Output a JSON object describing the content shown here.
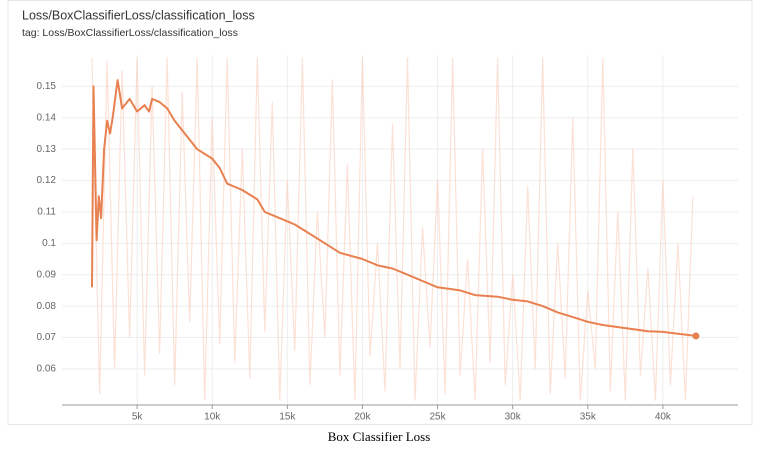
{
  "chart_data": {
    "type": "line",
    "title": "Loss/BoxClassifierLoss/classification_loss",
    "subtitle": "tag: Loss/BoxClassifierLoss/classification_loss",
    "caption": "Box Classifier Loss",
    "xlim": [
      0,
      45000
    ],
    "ylim": [
      0.0485,
      0.16
    ],
    "xticks": [
      {
        "value": 5000,
        "label": "5k"
      },
      {
        "value": 10000,
        "label": "10k"
      },
      {
        "value": 15000,
        "label": "15k"
      },
      {
        "value": 20000,
        "label": "20k"
      },
      {
        "value": 25000,
        "label": "25k"
      },
      {
        "value": 30000,
        "label": "30k"
      },
      {
        "value": 35000,
        "label": "35k"
      },
      {
        "value": 40000,
        "label": "40k"
      }
    ],
    "yticks": [
      0.06,
      0.07,
      0.08,
      0.09,
      0.1,
      0.11,
      0.12,
      0.13,
      0.14,
      0.15
    ],
    "grid": true,
    "series": [
      {
        "color": "#f9c9b4",
        "opacity": 0.55,
        "x": [
          2000,
          2500,
          3000,
          3500,
          4000,
          4500,
          5000,
          5500,
          6000,
          6500,
          7000,
          7500,
          8000,
          8500,
          9000,
          9500,
          10000,
          10500,
          11000,
          11500,
          12000,
          12500,
          13000,
          13500,
          14000,
          14500,
          15000,
          15500,
          16000,
          16500,
          17000,
          17500,
          18000,
          18500,
          19000,
          19500,
          20000,
          20500,
          21000,
          21500,
          22000,
          22500,
          23000,
          23500,
          24000,
          24500,
          25000,
          25500,
          26000,
          26500,
          27000,
          27500,
          28000,
          28500,
          29000,
          29500,
          30000,
          30500,
          31000,
          31500,
          32000,
          32500,
          33000,
          33500,
          34000,
          34500,
          35000,
          35500,
          36000,
          36500,
          37000,
          37500,
          38000,
          38500,
          39000,
          39500,
          40000,
          40500,
          41000,
          41500,
          42000
        ],
        "values": [
          0.159,
          0.052,
          0.158,
          0.06,
          0.155,
          0.07,
          0.159,
          0.058,
          0.15,
          0.065,
          0.159,
          0.055,
          0.148,
          0.075,
          0.159,
          0.05,
          0.14,
          0.068,
          0.159,
          0.062,
          0.13,
          0.057,
          0.159,
          0.072,
          0.145,
          0.05,
          0.12,
          0.066,
          0.159,
          0.055,
          0.11,
          0.07,
          0.152,
          0.058,
          0.125,
          0.05,
          0.159,
          0.064,
          0.1,
          0.053,
          0.138,
          0.06,
          0.159,
          0.05,
          0.105,
          0.067,
          0.12,
          0.052,
          0.159,
          0.058,
          0.095,
          0.05,
          0.13,
          0.062,
          0.159,
          0.055,
          0.09,
          0.05,
          0.118,
          0.06,
          0.159,
          0.052,
          0.1,
          0.057,
          0.14,
          0.05,
          0.085,
          0.06,
          0.159,
          0.053,
          0.11,
          0.05,
          0.13,
          0.058,
          0.092,
          0.05,
          0.12,
          0.055,
          0.1,
          0.05,
          0.115
        ]
      },
      {
        "color": "#e8804f",
        "opacity": 1,
        "end_marker": true,
        "x": [
          2000,
          2100,
          2300,
          2450,
          2600,
          2800,
          3000,
          3200,
          3400,
          3700,
          4000,
          4500,
          5000,
          5500,
          5800,
          6000,
          6500,
          7000,
          7500,
          8000,
          8500,
          9000,
          10000,
          10500,
          11000,
          12000,
          13000,
          13500,
          14500,
          15500,
          16500,
          17500,
          18500,
          20000,
          21000,
          22000,
          23000,
          24000,
          25000,
          26500,
          27500,
          29000,
          30000,
          31000,
          32000,
          33000,
          34000,
          35000,
          36000,
          37500,
          39000,
          40000,
          41000,
          42200
        ],
        "values": [
          0.086,
          0.15,
          0.101,
          0.115,
          0.108,
          0.13,
          0.139,
          0.135,
          0.141,
          0.152,
          0.143,
          0.146,
          0.142,
          0.144,
          0.142,
          0.146,
          0.145,
          0.143,
          0.139,
          0.136,
          0.133,
          0.13,
          0.127,
          0.124,
          0.119,
          0.117,
          0.114,
          0.11,
          0.108,
          0.106,
          0.103,
          0.1,
          0.097,
          0.095,
          0.093,
          0.092,
          0.09,
          0.088,
          0.086,
          0.085,
          0.0835,
          0.083,
          0.082,
          0.0815,
          0.08,
          0.078,
          0.0765,
          0.075,
          0.074,
          0.073,
          0.072,
          0.0718,
          0.0712,
          0.0705
        ]
      }
    ]
  }
}
